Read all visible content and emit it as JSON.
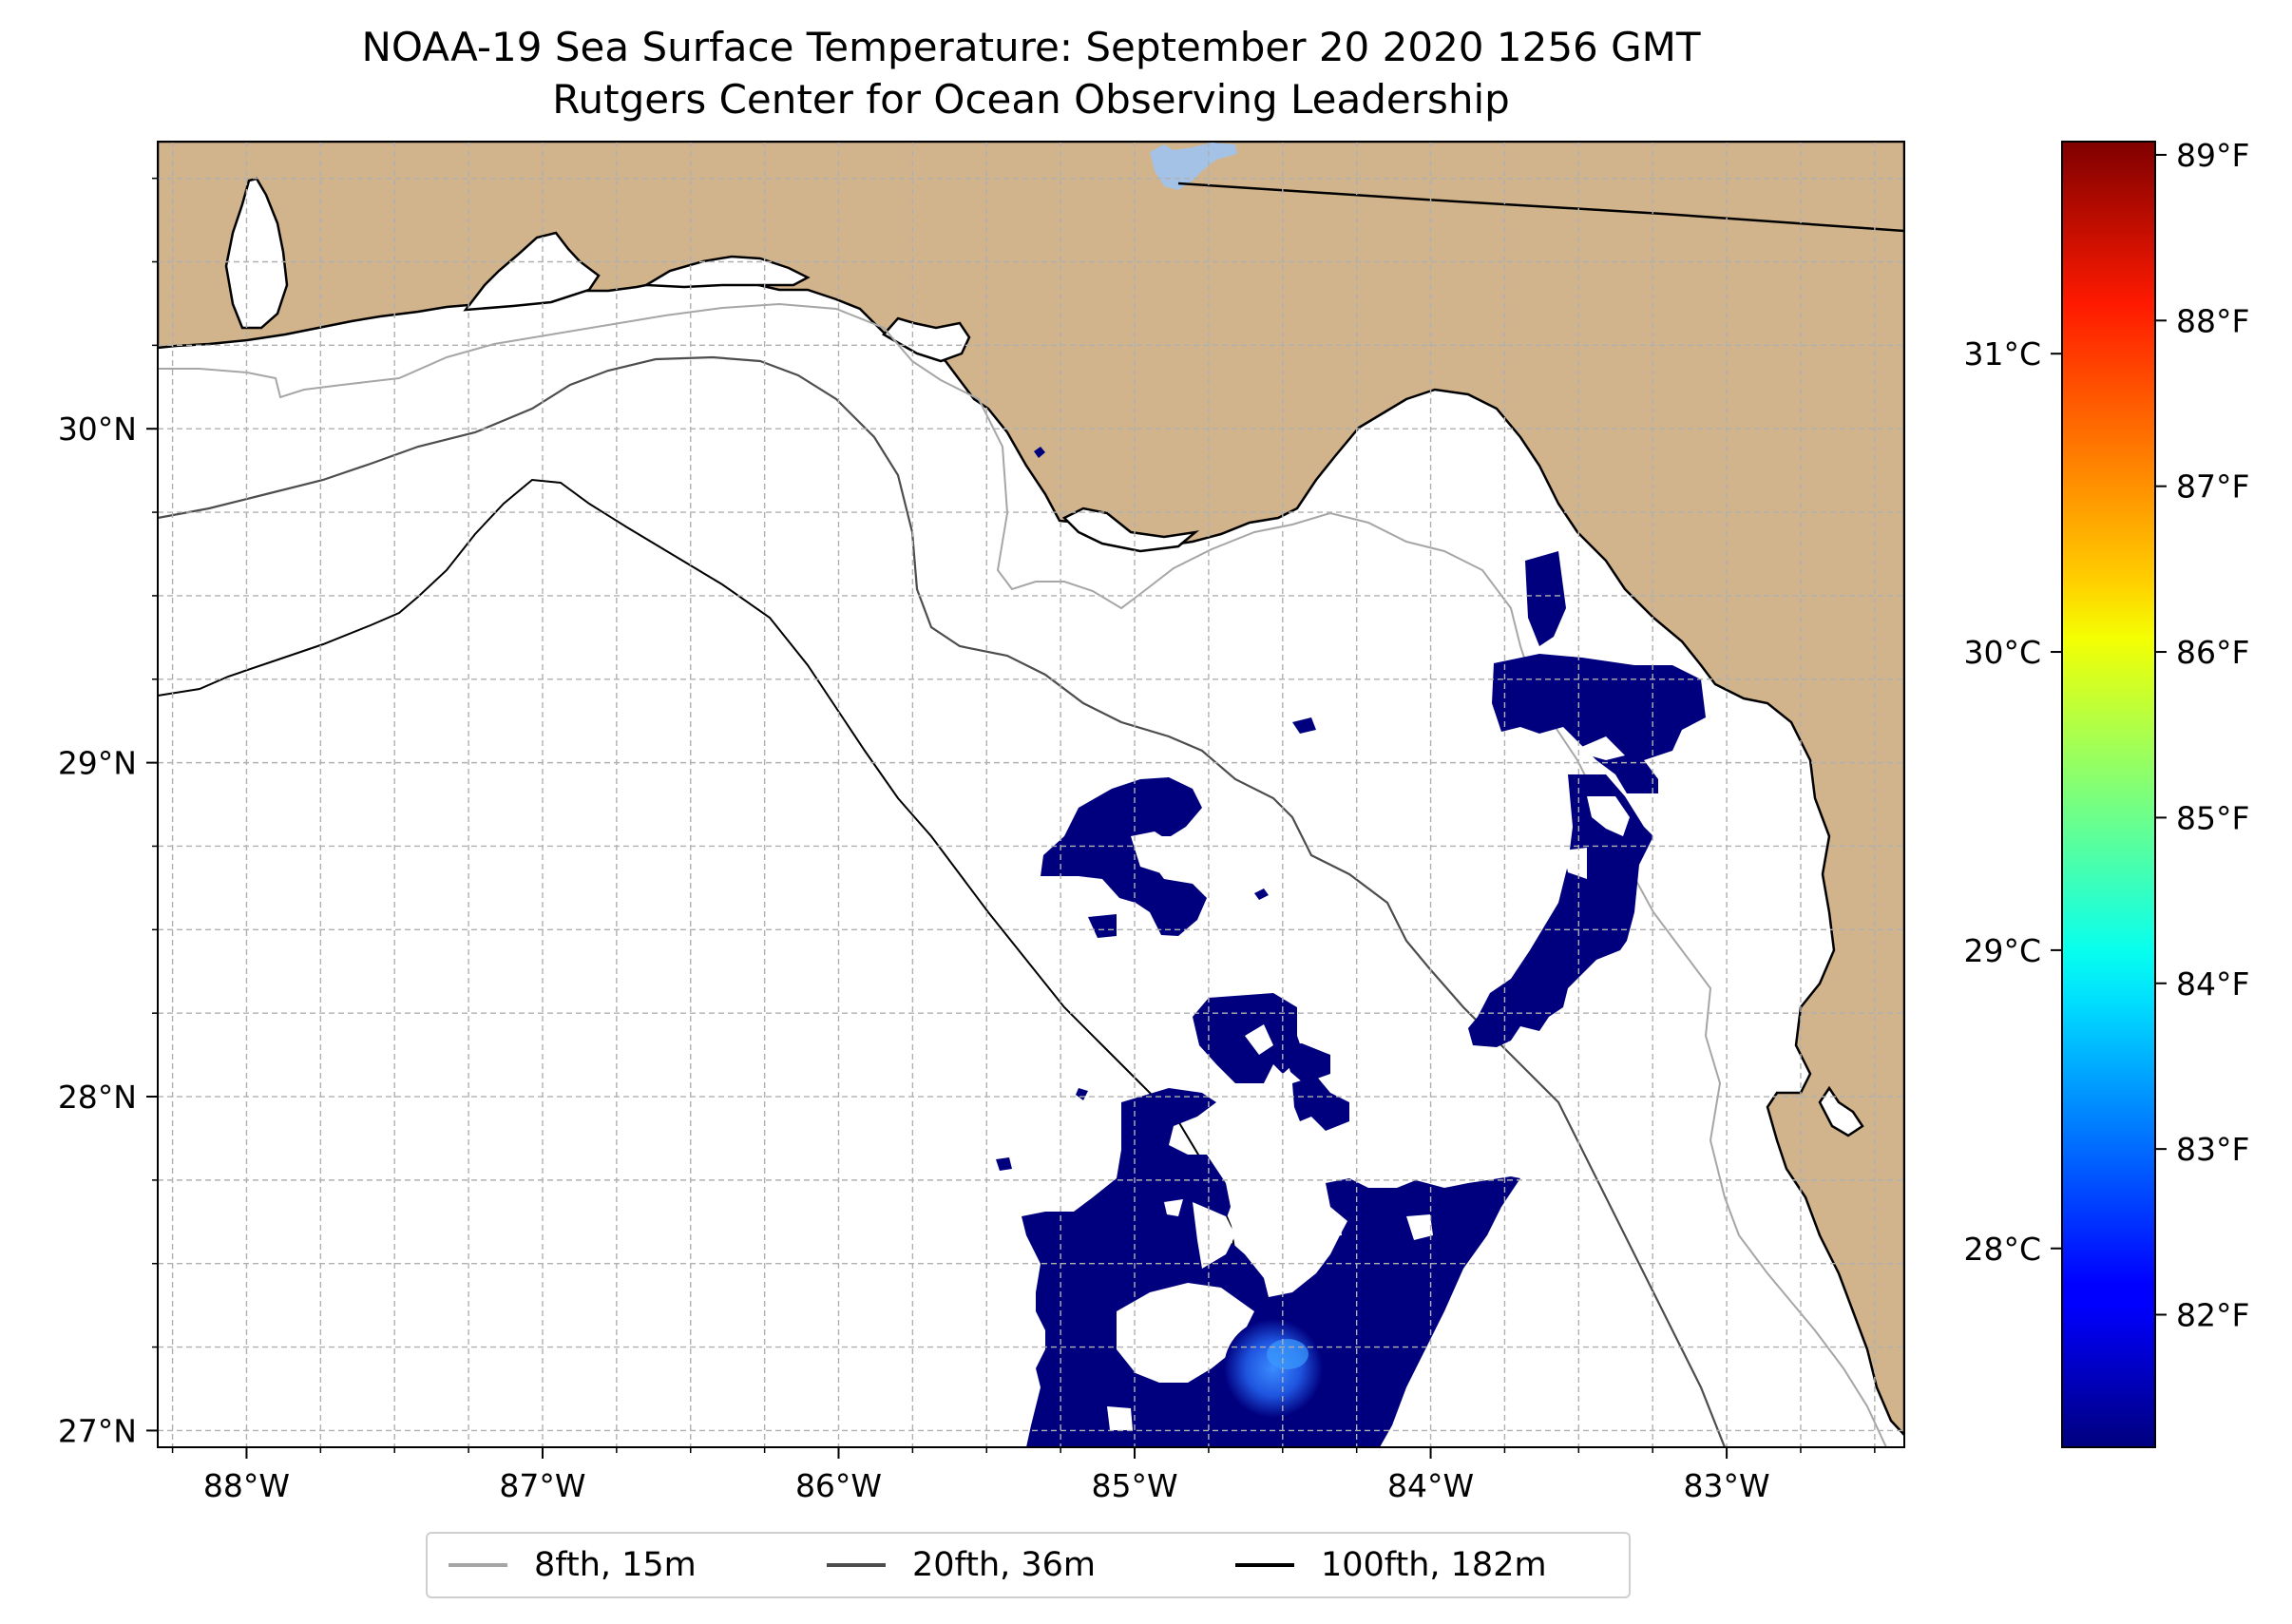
{
  "title": {
    "line1": "NOAA-19 Sea Surface Temperature: September 20 2020 1256 GMT",
    "line2": "Rutgers Center for Ocean Observing Leadership"
  },
  "map": {
    "lon_range": [
      -88.3,
      -82.4
    ],
    "lat_range": [
      26.95,
      30.86
    ],
    "x_ticks": [
      {
        "value": -88,
        "label": "88°W"
      },
      {
        "value": -87,
        "label": "87°W"
      },
      {
        "value": -86,
        "label": "86°W"
      },
      {
        "value": -85,
        "label": "85°W"
      },
      {
        "value": -84,
        "label": "84°W"
      },
      {
        "value": -83,
        "label": "83°W"
      }
    ],
    "y_ticks": [
      {
        "value": 27,
        "label": "27°N"
      },
      {
        "value": 28,
        "label": "28°N"
      },
      {
        "value": 29,
        "label": "29°N"
      },
      {
        "value": 30,
        "label": "30°N"
      }
    ],
    "grid": true,
    "land_color": "#d2b48c",
    "lake_color": "#a4c2e6",
    "sst_color": "#00007f",
    "warm_patch_color": "#1f6fff",
    "coastline_color": "#000000"
  },
  "legend": {
    "placement": "bottom-center",
    "items": [
      {
        "label": "8fth, 15m",
        "color": "#a6a6a6"
      },
      {
        "label": "20fth, 36m",
        "color": "#4d4d4d"
      },
      {
        "label": "100fth, 182m",
        "color": "#000000"
      }
    ]
  },
  "colorbar": {
    "colormap": "jet",
    "celsius_ticks": [
      {
        "value": 28,
        "label": "28°C"
      },
      {
        "value": 29,
        "label": "29°C"
      },
      {
        "value": 30,
        "label": "30°C"
      },
      {
        "value": 31,
        "label": "31°C"
      }
    ],
    "fahrenheit_ticks": [
      {
        "value": 82,
        "label": "82°F"
      },
      {
        "value": 83,
        "label": "83°F"
      },
      {
        "value": 84,
        "label": "84°F"
      },
      {
        "value": 85,
        "label": "85°F"
      },
      {
        "value": 86,
        "label": "86°F"
      },
      {
        "value": 87,
        "label": "87°F"
      },
      {
        "value": 88,
        "label": "88°F"
      },
      {
        "value": 89,
        "label": "89°F"
      }
    ]
  }
}
